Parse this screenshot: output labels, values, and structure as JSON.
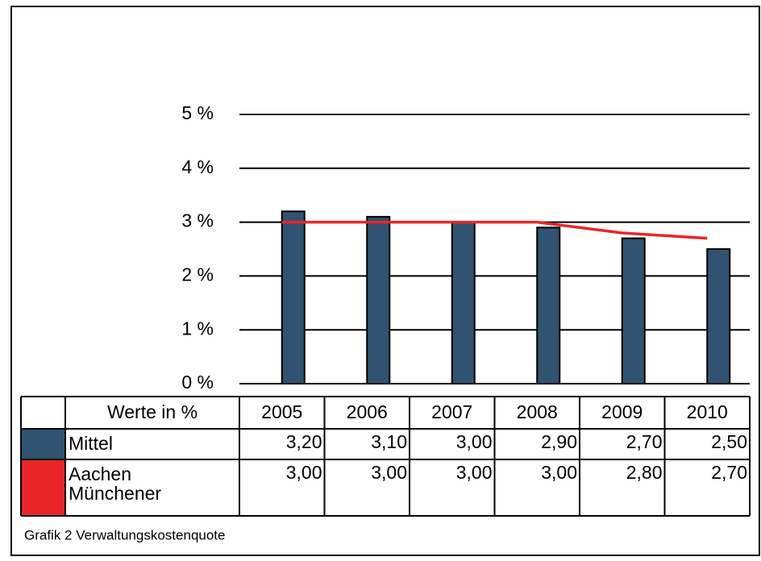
{
  "chart_data": {
    "type": "bar",
    "caption": "Grafik 2 Verwaltungskostenquote",
    "table_header": "Werte in %",
    "categories": [
      "2005",
      "2006",
      "2007",
      "2008",
      "2009",
      "2010"
    ],
    "series": [
      {
        "name": "Mittel",
        "type": "bar",
        "color": "#2f5370",
        "values": [
          3.2,
          3.1,
          3.0,
          2.9,
          2.7,
          2.5
        ],
        "value_labels": [
          "3,20",
          "3,10",
          "3,00",
          "2,90",
          "2,70",
          "2,50"
        ]
      },
      {
        "name": "Aachen Münchener",
        "type": "line",
        "color": "#e8262a",
        "values": [
          3.0,
          3.0,
          3.0,
          3.0,
          2.8,
          2.7
        ],
        "value_labels": [
          "3,00",
          "3,00",
          "3,00",
          "3,00",
          "2,80",
          "2,70"
        ]
      }
    ],
    "ylim": [
      0,
      5
    ],
    "yticks": [
      {
        "value": 0,
        "label": "0 %"
      },
      {
        "value": 1,
        "label": "1 %"
      },
      {
        "value": 2,
        "label": "2 %"
      },
      {
        "value": 3,
        "label": "3 %"
      },
      {
        "value": 4,
        "label": "4 %"
      },
      {
        "value": 5,
        "label": "5 %"
      }
    ],
    "grid": true
  }
}
